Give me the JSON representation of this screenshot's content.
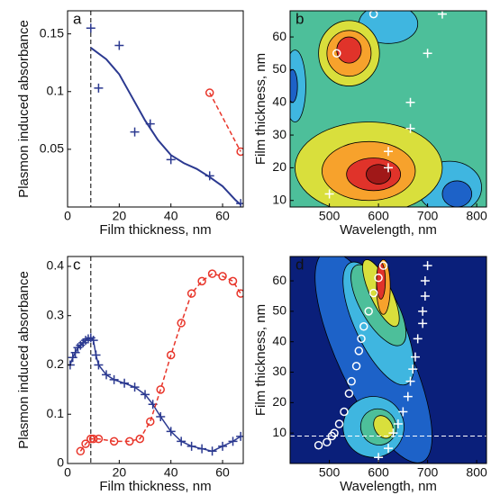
{
  "chart_data": [
    {
      "type": "line",
      "label": "a",
      "xlabel": "Film thickness, nm",
      "ylabel": "Plasmon induced absorbance",
      "xlim": [
        0,
        68
      ],
      "ylim": [
        0,
        0.17
      ],
      "xticks": [
        0,
        20,
        40,
        60
      ],
      "yticks": [
        0.05,
        0.1,
        0.15
      ],
      "vline": 9,
      "series": [
        {
          "color": "#2b3990",
          "marker": "+",
          "line": "none",
          "x": [
            9,
            12,
            20,
            26,
            32,
            40,
            55,
            67
          ],
          "y": [
            0.155,
            0.103,
            0.14,
            0.065,
            0.072,
            0.041,
            0.027,
            0.003
          ]
        },
        {
          "color": "#2b3990",
          "marker": "none",
          "line": "solid",
          "x": [
            9,
            15,
            20,
            25,
            30,
            35,
            40,
            45,
            50,
            55,
            60,
            65,
            67
          ],
          "y": [
            0.138,
            0.128,
            0.115,
            0.095,
            0.075,
            0.058,
            0.045,
            0.038,
            0.033,
            0.026,
            0.018,
            0.006,
            0.002
          ]
        },
        {
          "color": "#e8352a",
          "marker": "o",
          "line": "dashed",
          "x": [
            55,
            67
          ],
          "y": [
            0.099,
            0.048
          ]
        }
      ]
    },
    {
      "type": "contour",
      "label": "b",
      "xlabel": "Wavelength, nm",
      "ylabel": "Film thickness, nm",
      "xlim": [
        420,
        820
      ],
      "ylim": [
        8,
        68
      ],
      "xticks": [
        500,
        600,
        700,
        800
      ],
      "yticks": [
        10,
        20,
        30,
        40,
        50,
        60
      ],
      "colors": [
        "#0a1f7a",
        "#1d62c8",
        "#3fb6e0",
        "#4dbf9a",
        "#d9df3c",
        "#f7a22c",
        "#e0332a",
        "#a01818"
      ],
      "background_level": 3,
      "blobs": [
        {
          "x": 430,
          "y": 45,
          "rx": 22,
          "ry": 11,
          "angle": 0,
          "level": 2
        },
        {
          "x": 425,
          "y": 45,
          "rx": 10,
          "ry": 5,
          "angle": 0,
          "level": 1
        },
        {
          "x": 620,
          "y": 64,
          "rx": 60,
          "ry": 6,
          "angle": 0,
          "level": 2
        },
        {
          "x": 745,
          "y": 14,
          "rx": 65,
          "ry": 8,
          "angle": 0,
          "level": 2
        },
        {
          "x": 760,
          "y": 12,
          "rx": 30,
          "ry": 4,
          "angle": 0,
          "level": 1
        },
        {
          "x": 540,
          "y": 55,
          "rx": 62,
          "ry": 10,
          "angle": 0,
          "level": 4
        },
        {
          "x": 540,
          "y": 55,
          "rx": 45,
          "ry": 7,
          "angle": 0,
          "level": 5
        },
        {
          "x": 540,
          "y": 56,
          "rx": 25,
          "ry": 4,
          "angle": 0,
          "level": 6
        },
        {
          "x": 580,
          "y": 20,
          "rx": 150,
          "ry": 14,
          "angle": 0,
          "level": 4
        },
        {
          "x": 580,
          "y": 19,
          "rx": 95,
          "ry": 9,
          "angle": 0,
          "level": 5
        },
        {
          "x": 590,
          "y": 18,
          "rx": 55,
          "ry": 5,
          "angle": 0,
          "level": 6
        },
        {
          "x": 600,
          "y": 18,
          "rx": 25,
          "ry": 3,
          "angle": 0,
          "level": 7
        }
      ],
      "series": [
        {
          "color": "#ffffff",
          "marker": "o",
          "line": "none",
          "x": [
            515,
            590
          ],
          "y": [
            55,
            67
          ]
        },
        {
          "color": "#ffffff",
          "marker": "+",
          "line": "none",
          "x": [
            500,
            620,
            620,
            665,
            665,
            700,
            730
          ],
          "y": [
            12,
            20,
            25,
            32,
            40,
            55,
            67
          ]
        }
      ]
    },
    {
      "type": "line",
      "label": "c",
      "xlabel": "Film thickness, nm",
      "ylabel": "Plasmon induced absorbance",
      "xlim": [
        0,
        68
      ],
      "ylim": [
        0,
        0.42
      ],
      "xticks": [
        0,
        20,
        40,
        60
      ],
      "yticks": [
        0,
        0.1,
        0.2,
        0.3,
        0.4
      ],
      "vline": 9,
      "series": [
        {
          "color": "#2b3990",
          "marker": "+",
          "line": "solid",
          "x": [
            1,
            2,
            3,
            4,
            5,
            6,
            7,
            8,
            9,
            10,
            11,
            12,
            15,
            18,
            22,
            26,
            30,
            33,
            36,
            40,
            44,
            48,
            52,
            56,
            60,
            64,
            67
          ],
          "y": [
            0.2,
            0.215,
            0.225,
            0.235,
            0.24,
            0.245,
            0.25,
            0.253,
            0.255,
            0.25,
            0.22,
            0.2,
            0.18,
            0.17,
            0.163,
            0.155,
            0.14,
            0.12,
            0.095,
            0.065,
            0.045,
            0.035,
            0.03,
            0.025,
            0.035,
            0.045,
            0.055
          ]
        },
        {
          "color": "#e8352a",
          "marker": "o",
          "line": "dashed",
          "x": [
            5,
            7,
            9,
            10,
            12,
            18,
            24,
            28,
            32,
            36,
            40,
            44,
            48,
            52,
            56,
            60,
            64,
            67
          ],
          "y": [
            0.025,
            0.04,
            0.05,
            0.05,
            0.05,
            0.045,
            0.045,
            0.05,
            0.085,
            0.15,
            0.22,
            0.285,
            0.345,
            0.37,
            0.385,
            0.38,
            0.37,
            0.345
          ]
        }
      ]
    },
    {
      "type": "contour",
      "label": "d",
      "xlabel": "Wavelength, nm",
      "ylabel": "Film thickness, nm",
      "xlim": [
        420,
        820
      ],
      "ylim": [
        0,
        68
      ],
      "xticks": [
        500,
        600,
        700,
        800
      ],
      "yticks": [
        10,
        20,
        30,
        40,
        50,
        60
      ],
      "hline": 9,
      "colors": [
        "#0a1f7a",
        "#1d62c8",
        "#3fb6e0",
        "#4dbf9a",
        "#d9df3c",
        "#f7a22c",
        "#e0332a",
        "#a01818"
      ],
      "background_level": 0,
      "blobs": [
        {
          "x": 590,
          "y": 35,
          "rx": 72,
          "ry": 38,
          "angle": -25,
          "level": 1
        },
        {
          "x": 600,
          "y": 46,
          "rx": 48,
          "ry": 22,
          "angle": -25,
          "level": 2
        },
        {
          "x": 600,
          "y": 52,
          "rx": 36,
          "ry": 15,
          "angle": -30,
          "level": 3
        },
        {
          "x": 605,
          "y": 56,
          "rx": 22,
          "ry": 12,
          "angle": -25,
          "level": 4
        },
        {
          "x": 610,
          "y": 58,
          "rx": 14,
          "ry": 9,
          "angle": 0,
          "level": 5
        },
        {
          "x": 605,
          "y": 60,
          "rx": 9,
          "ry": 6,
          "angle": 0,
          "level": 6
        },
        {
          "x": 590,
          "y": 12,
          "rx": 62,
          "ry": 10,
          "angle": -30,
          "level": 2
        },
        {
          "x": 600,
          "y": 12,
          "rx": 36,
          "ry": 6,
          "angle": -30,
          "level": 3
        },
        {
          "x": 610,
          "y": 12,
          "rx": 18,
          "ry": 4,
          "angle": -30,
          "level": 4
        }
      ],
      "series": [
        {
          "color": "#ffffff",
          "marker": "o",
          "line": "none",
          "x": [
            478,
            495,
            505,
            510,
            520,
            530,
            540,
            545,
            555,
            560,
            565,
            570,
            580,
            590,
            600,
            610
          ],
          "y": [
            6,
            7,
            9,
            10,
            13,
            17,
            23,
            27,
            32,
            37,
            41,
            45,
            50,
            56,
            61,
            65
          ]
        },
        {
          "color": "#ffffff",
          "marker": "+",
          "line": "none",
          "x": [
            600,
            620,
            630,
            640,
            650,
            660,
            665,
            670,
            675,
            680,
            690,
            690,
            695,
            695,
            700
          ],
          "y": [
            2,
            5,
            10,
            13,
            17,
            22,
            27,
            31,
            35,
            41,
            46,
            50,
            55,
            60,
            65
          ]
        }
      ]
    }
  ]
}
